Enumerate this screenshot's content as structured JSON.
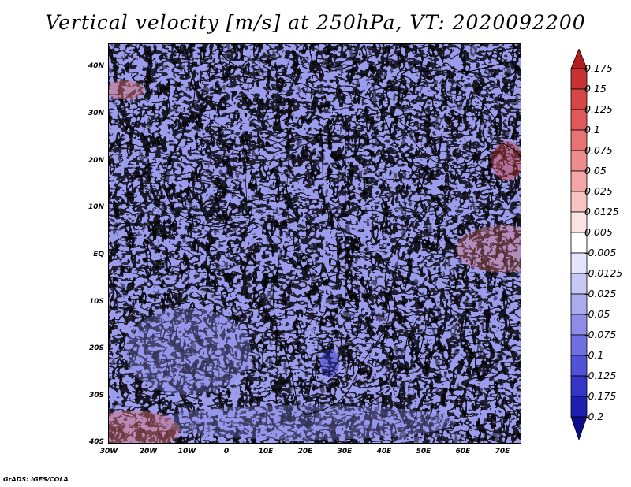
{
  "title": "Vertical velocity [m/s] at 250hPa, VT: 2020092200",
  "credit": "GrADS: IGES/COLA",
  "map": {
    "lon_range": [
      -30,
      75
    ],
    "lat_range": [
      -40,
      45
    ],
    "x_ticks": [
      "30W",
      "20W",
      "10W",
      "0",
      "10E",
      "20E",
      "30E",
      "40E",
      "50E",
      "60E",
      "70E"
    ],
    "y_ticks": [
      "40N",
      "30N",
      "20N",
      "10N",
      "EQ",
      "10S",
      "20S",
      "30S",
      "40S"
    ]
  },
  "colorbar": {
    "levels": [
      "0.175",
      "0.15",
      "0.125",
      "0.1",
      "0.075",
      "0.05",
      "0.025",
      "0.0125",
      "0.005",
      "-0.005",
      "-0.0125",
      "-0.025",
      "-0.05",
      "-0.075",
      "-0.1",
      "-0.125",
      "-0.175",
      "-0.2"
    ],
    "colors": [
      "#b41e1e",
      "#c83232",
      "#d74646",
      "#e15a5a",
      "#e87373",
      "#ef8c8c",
      "#f4a6a6",
      "#f9c3c3",
      "#fde2e2",
      "#ffffff",
      "#e4e4fa",
      "#c8c8f4",
      "#aaaaee",
      "#8e8ee8",
      "#7070e0",
      "#5252d6",
      "#3434c6",
      "#1e1eb0",
      "#0c0c8c"
    ]
  }
}
